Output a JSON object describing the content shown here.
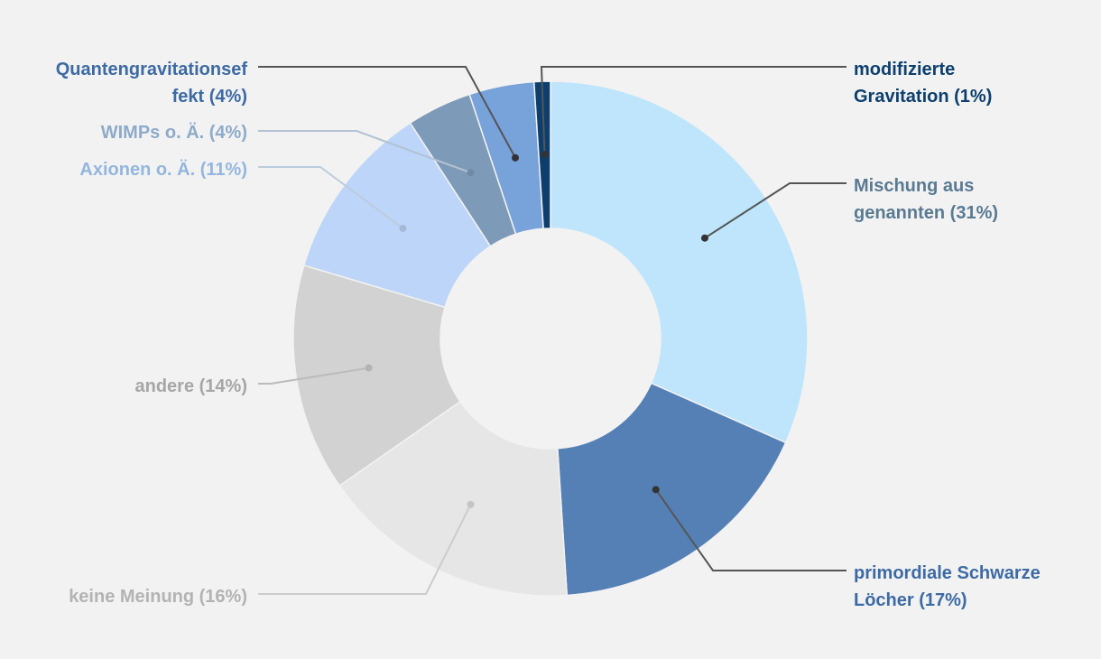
{
  "chart_data": {
    "type": "pie",
    "variant": "donut",
    "title": "",
    "legend": "none",
    "slices": [
      {
        "label": "Mischung aus genannten",
        "lines": [
          "Mischung aus",
          "genannten"
        ],
        "pct_text": "(31%)",
        "value": 31,
        "color": "#bee5fc",
        "label_color": "#5a7a92",
        "pct_color": "#5a7a92",
        "dot_color": "#333333",
        "line_color": "#555555"
      },
      {
        "label": "primordiale Schwarze Löcher",
        "lines": [
          "primordiale Schwarze",
          "Löcher"
        ],
        "pct_text": "(17%)",
        "value": 17,
        "color": "#5580b6",
        "label_color": "#3d6aa3",
        "pct_color": "#3d6aa3",
        "dot_color": "#333333",
        "line_color": "#555555"
      },
      {
        "label": "keine Meinung",
        "lines": [
          "keine Meinung"
        ],
        "pct_text": "(16%)",
        "value": 16,
        "color": "#e6e6e6",
        "label_color": "#b3b3b3",
        "pct_color": "#b3b3b3",
        "dot_color": "#c4c4c4",
        "line_color": "#cccccc"
      },
      {
        "label": "andere",
        "lines": [
          "andere"
        ],
        "pct_text": "(14%)",
        "value": 14,
        "color": "#d2d2d2",
        "label_color": "#a6a6a6",
        "pct_color": "#a6a6a6",
        "dot_color": "#b3b3b3",
        "line_color": "#bbbbbb"
      },
      {
        "label": "Axionen o. Ä.",
        "lines": [
          "Axionen o. Ä."
        ],
        "pct_text": "(11%)",
        "value": 11,
        "color": "#bdd5f8",
        "label_color": "#94b6de",
        "pct_color": "#94b6de",
        "dot_color": "#a3b9d6",
        "line_color": "#bcccdd"
      },
      {
        "label": "WIMPs o. Ä.",
        "lines": [
          "WIMPs o. Ä."
        ],
        "pct_text": "(4%)",
        "value": 4,
        "color": "#7d9bb9",
        "label_color": "#8eabca",
        "pct_color": "#8eabca",
        "dot_color": "#6f8aa3",
        "line_color": "#b3c2d3"
      },
      {
        "label": "Quantengravitationseffekt",
        "lines": [
          "Quantengravitationsef",
          "fekt"
        ],
        "pct_text": "(4%)",
        "value": 4,
        "color": "#78a2da",
        "label_color": "#3d6aa3",
        "pct_color": "#3d6aa3",
        "dot_color": "#333333",
        "line_color": "#555555"
      },
      {
        "label": "modifizierte Gravitation",
        "lines": [
          "modifizierte",
          "Gravitation"
        ],
        "pct_text": "(1%)",
        "value": 1,
        "color": "#0d3f6e",
        "label_color": "#0d3f6e",
        "pct_color": "#0d3f6e",
        "dot_color": "#333333",
        "line_color": "#555555"
      }
    ]
  }
}
